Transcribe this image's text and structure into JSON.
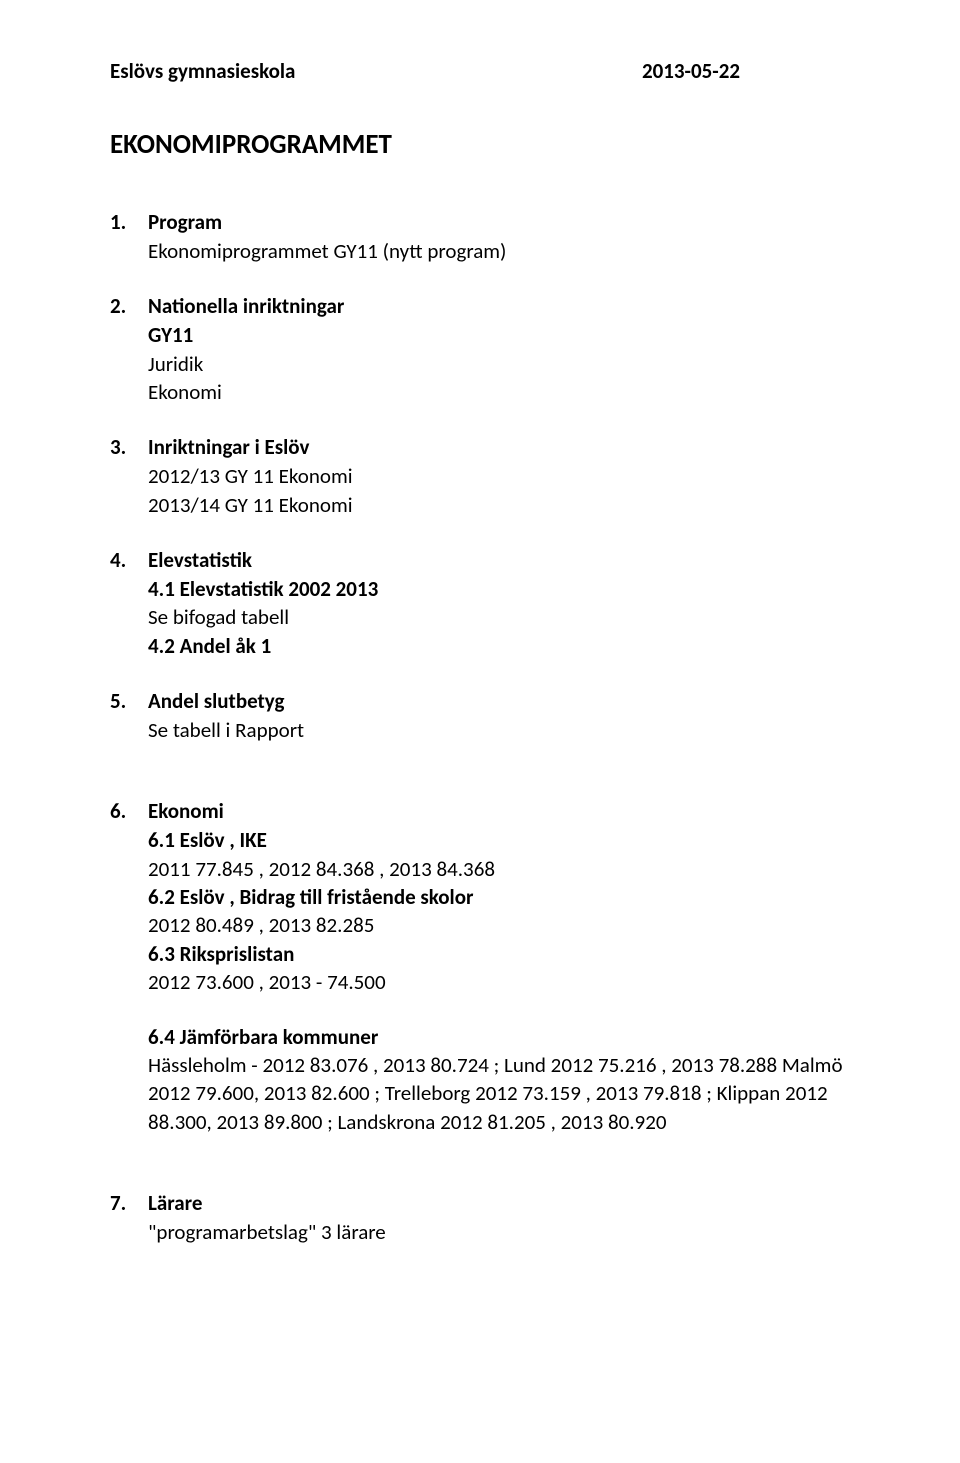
{
  "header": {
    "school": "Eslövs gymnasieskola",
    "date": "2013-05-22"
  },
  "title": "EKONOMIPROGRAMMET",
  "sections": {
    "s1": {
      "num": "1.",
      "heading": "Program",
      "lines": [
        "Ekonomiprogrammet GY11 (nytt program)"
      ]
    },
    "s2": {
      "num": "2.",
      "heading": "Nationella inriktningar",
      "bold_lines": [
        "GY11"
      ],
      "lines": [
        "Juridik",
        "Ekonomi"
      ]
    },
    "s3": {
      "num": "3.",
      "heading": "Inriktningar i Eslöv",
      "lines": [
        "2012/13 GY 11  Ekonomi",
        "2013/14 GY 11  Ekonomi"
      ]
    },
    "s4": {
      "num": "4.",
      "heading": "Elevstatistik",
      "sub1_bold": "4.1 Elevstatistik 2002 2013",
      "sub1_line": "Se bifogad tabell",
      "sub2_bold": "4.2 Andel åk 1"
    },
    "s5": {
      "num": "5.",
      "heading": "Andel slutbetyg",
      "lines": [
        "Se tabell i Rapport"
      ]
    },
    "s6": {
      "num": "6.",
      "heading": "Ekonomi",
      "sub1_bold": "6.1 Eslöv , IKE",
      "sub1_line": "2011 77.845 , 2012 84.368 ,  2013 84.368",
      "sub2_bold": "6.2 Eslöv , Bidrag till fristående skolor",
      "sub2_line": "2012 80.489 , 2013 82.285",
      "sub3_bold": "6.3 Riksprislistan",
      "sub3_line": "2012 73.600 , 2013 - 74.500",
      "sub4_bold": "6.4 Jämförbara kommuner",
      "sub4_line1": "Hässleholm - 2012 83.076 , 2013 80.724 ; Lund 2012 75.216 , 2013 78.288 Malmö 2012 79.600, 2013 82.600 ; Trelleborg 2012 73.159 , 2013 79.818 ; Klippan 2012 88.300, 2013 89.800 ;  Landskrona 2012 81.205 , 2013 80.920"
    },
    "s7": {
      "num": "7.",
      "heading": "Lärare",
      "lines": [
        "\"programarbetslag\" 3 lärare"
      ]
    }
  }
}
